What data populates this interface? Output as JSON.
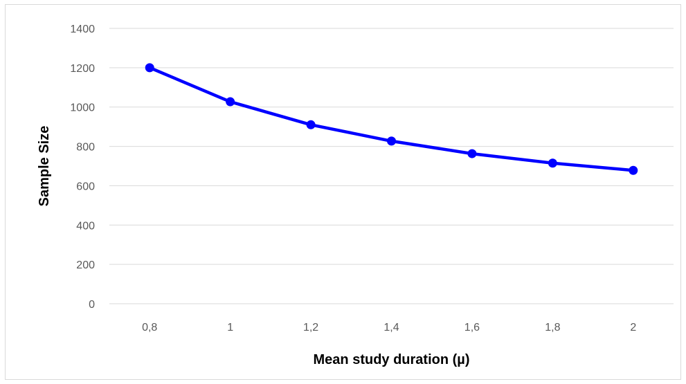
{
  "chart_data": {
    "type": "line",
    "title": "",
    "xlabel": "Mean study duration (µ)",
    "ylabel": "Sample Size",
    "categories": [
      "0,8",
      "1",
      "1,2",
      "1,4",
      "1,6",
      "1,8",
      "2"
    ],
    "series": [
      {
        "values": [
          1200,
          1027,
          910,
          827,
          763,
          715,
          678
        ],
        "color": "#0000ff"
      }
    ],
    "ylim": [
      0,
      1400
    ],
    "yticks": [
      "0",
      "200",
      "400",
      "600",
      "800",
      "1000",
      "1200",
      "1400"
    ],
    "grid": true,
    "legend": "none"
  },
  "colors": {
    "line": "#0000ff",
    "grid": "#d9d9d9",
    "tick_text": "#595959"
  }
}
